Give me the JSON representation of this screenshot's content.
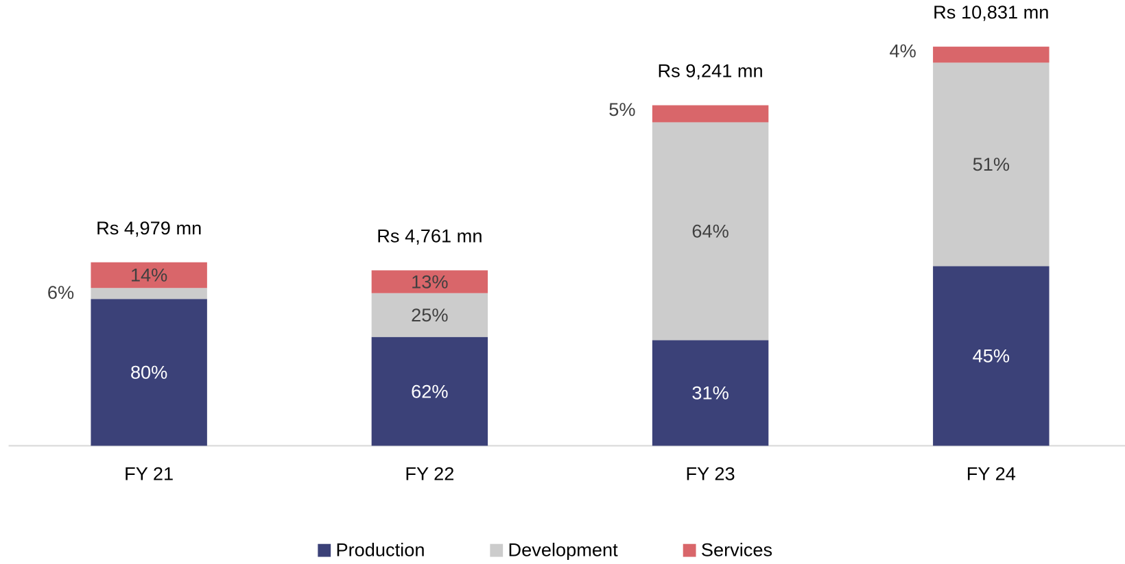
{
  "chart_data": {
    "type": "stacked-bar",
    "categories": [
      "FY 21",
      "FY 22",
      "FY 23",
      "FY 24"
    ],
    "series": [
      {
        "name": "Production",
        "color": "#3b4178",
        "label_color": "#ffffff",
        "values": [
          80,
          62,
          31,
          45
        ],
        "value_labels": [
          "80%",
          "62%",
          "31%",
          "45%"
        ]
      },
      {
        "name": "Development",
        "color": "#cccccc",
        "label_color": "#404040",
        "values": [
          6,
          25,
          64,
          51
        ],
        "value_labels": [
          "6%",
          "25%",
          "64%",
          "51%"
        ]
      },
      {
        "name": "Services",
        "color": "#d9666a",
        "label_color": "#404040",
        "values": [
          14,
          13,
          5,
          4
        ],
        "value_labels": [
          "14%",
          "13%",
          "5%",
          "4%"
        ]
      }
    ],
    "totals": {
      "values": [
        4979,
        4761,
        9241,
        10831
      ],
      "value_labels": [
        "Rs 4,979 mn",
        "Rs 4,761 mn",
        "Rs 9,241 mn",
        "Rs 10,831 mn"
      ]
    },
    "ylim": [
      0,
      12000
    ],
    "legend": "bottom"
  }
}
